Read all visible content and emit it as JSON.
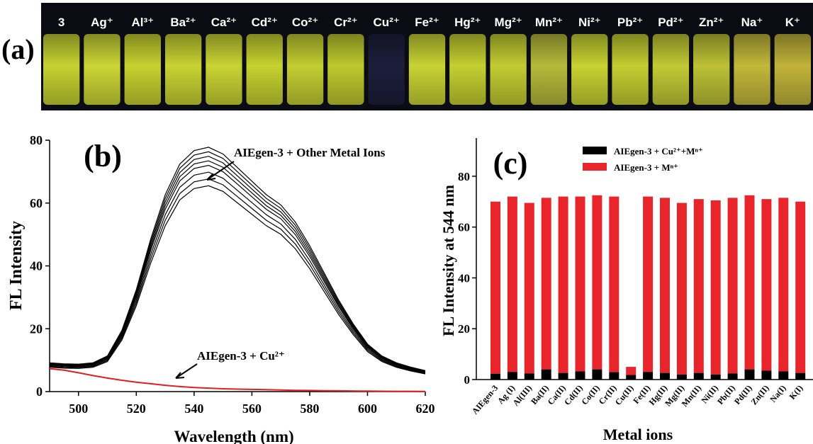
{
  "panel_a": {
    "label": "(a)",
    "vials": [
      {
        "label": "3",
        "glow": "#c5d231"
      },
      {
        "label": "Ag⁺",
        "glow": "#cbd636"
      },
      {
        "label": "Al³⁺",
        "glow": "#c7d12f"
      },
      {
        "label": "Ba²⁺",
        "glow": "#c8d332"
      },
      {
        "label": "Ca²⁺",
        "glow": "#c9d433"
      },
      {
        "label": "Cd²⁺",
        "glow": "#c6d230"
      },
      {
        "label": "Co²⁺",
        "glow": "#c3ce31"
      },
      {
        "label": "Cr²⁺",
        "glow": "#bdc92e"
      },
      {
        "label": "Cu²⁺",
        "glow": "#1c1e3a"
      },
      {
        "label": "Fe²⁺",
        "glow": "#c8d334"
      },
      {
        "label": "Hg²⁺",
        "glow": "#c4cf30"
      },
      {
        "label": "Mg²⁺",
        "glow": "#c2cc31"
      },
      {
        "label": "Mn²⁺",
        "glow": "#b5b93a"
      },
      {
        "label": "Ni²⁺",
        "glow": "#c7d232"
      },
      {
        "label": "Pb²⁺",
        "glow": "#c4ce31"
      },
      {
        "label": "Pd²⁺",
        "glow": "#c1c934"
      },
      {
        "label": "Zn²⁺",
        "glow": "#bcc135"
      },
      {
        "label": "Na⁺",
        "glow": "#c2b83a"
      },
      {
        "label": "K⁺",
        "glow": "#c0b33a"
      }
    ]
  },
  "chart_data": [
    {
      "type": "line",
      "panel_label": "(b)",
      "xlabel": "Wavelength (nm)",
      "ylabel": "FL Intensity",
      "xlim": [
        490,
        620
      ],
      "ylim": [
        0,
        80
      ],
      "xticks": [
        500,
        520,
        540,
        560,
        580,
        600,
        620
      ],
      "yticks": [
        0,
        20,
        40,
        60,
        80
      ],
      "x": [
        490,
        495,
        500,
        505,
        510,
        515,
        520,
        525,
        530,
        535,
        540,
        545,
        550,
        555,
        560,
        565,
        570,
        575,
        580,
        585,
        590,
        595,
        600,
        605,
        610,
        615,
        620
      ],
      "series": [
        {
          "name": "AIEgen-3 + Other Metal Ions",
          "color": "#000000",
          "values": [
            8.5,
            8.2,
            8.1,
            8.5,
            10.5,
            18,
            30,
            45,
            58,
            67,
            71,
            72,
            70,
            66,
            62,
            58,
            55,
            50,
            43,
            35,
            27,
            20,
            14,
            10.5,
            8.5,
            7.2,
            6.2
          ]
        },
        {
          "name": "AIEgen-3 + Cu²⁺",
          "color": "#e02020",
          "values": [
            7.3,
            6.8,
            6.0,
            5.1,
            4.3,
            3.6,
            3.0,
            2.5,
            2.0,
            1.6,
            1.3,
            1.1,
            0.9,
            0.8,
            0.7,
            0.6,
            0.5,
            0.4,
            0.35,
            0.3,
            0.25,
            0.2,
            0.15,
            0.12,
            0.1,
            0.08,
            0.05
          ]
        }
      ],
      "annotations": [
        {
          "text": "AIEgen-3 + Other Metal Ions"
        },
        {
          "text": "AIEgen-3 + Cu²⁺"
        }
      ]
    },
    {
      "type": "bar",
      "panel_label": "(c)",
      "xlabel": "Metal ions",
      "ylabel": "FL Intensity at 544 nm",
      "ylim": [
        0,
        95
      ],
      "yticks": [
        0,
        20,
        40,
        60,
        80
      ],
      "categories": [
        "AIEgen-3",
        "Ag (I)",
        "Al(III)",
        "Ba(II)",
        "Ca(II)",
        "Cd(II)",
        "Co(II)",
        "Cr(II)",
        "Cu(II)",
        "Fe(II)",
        "Hg(II)",
        "Mg(II)",
        "Mn(II)",
        "Ni(II)",
        "Pb(II)",
        "Pd(II)",
        "Zn(II)",
        "Na(I)",
        "K(I)"
      ],
      "series": [
        {
          "name": "AIEgen-3 + Cu²⁺+Mⁿ⁺",
          "color": "#000000",
          "values": [
            2.3,
            3.0,
            2.4,
            4.0,
            2.6,
            3.2,
            4.0,
            2.9,
            1.8,
            3.0,
            2.6,
            2.0,
            2.6,
            2.0,
            2.4,
            4.0,
            3.5,
            3.2,
            2.6
          ]
        },
        {
          "name": "AIEgen-3 + Mⁿ⁺",
          "color": "#e8252a",
          "values": [
            70,
            72,
            69.5,
            71.5,
            72,
            72,
            72.5,
            72,
            5,
            72,
            71.5,
            69.5,
            71,
            70.5,
            71.5,
            72.5,
            71,
            71.5,
            70
          ]
        }
      ],
      "legend_position": "top"
    }
  ]
}
